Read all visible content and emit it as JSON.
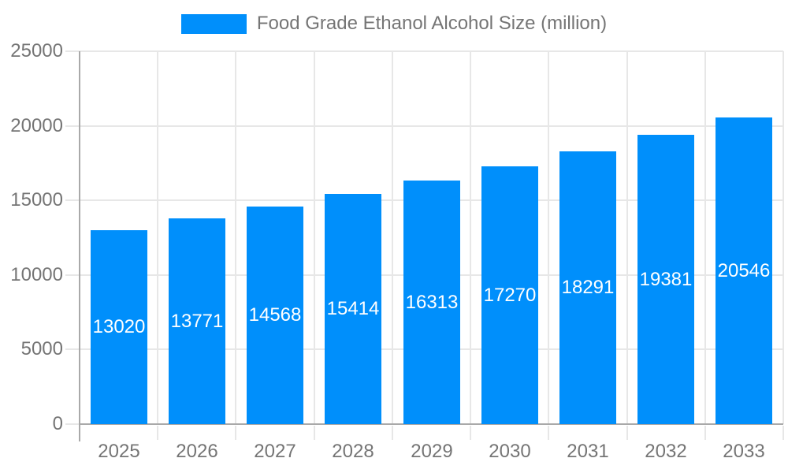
{
  "legend": {
    "label": "Food Grade Ethanol Alcohol Size (million)"
  },
  "chart_data": {
    "type": "bar",
    "title": "Food Grade Ethanol Alcohol Size (million)",
    "categories": [
      "2025",
      "2026",
      "2027",
      "2028",
      "2029",
      "2030",
      "2031",
      "2032",
      "2033"
    ],
    "series": [
      {
        "name": "Food Grade Ethanol Alcohol Size (million)",
        "values": [
          13020,
          13771,
          14568,
          15414,
          16313,
          17270,
          18291,
          19381,
          20546
        ]
      }
    ],
    "value_labels": [
      13020,
      13771,
      14568,
      15414,
      16313,
      17270,
      18291,
      19381,
      20546
    ],
    "xlabel": "",
    "ylabel": "",
    "ylim": [
      0,
      25000
    ],
    "yticks": [
      0,
      5000,
      10000,
      15000,
      20000,
      25000
    ],
    "grid": true,
    "legend_position": "top",
    "value_label_position": "inside-center",
    "colors": {
      "bar": "#008FFB",
      "value_label": "#FFFFFF",
      "axis_text": "#757575",
      "grid_line": "#E7E7E7",
      "axis_line": "#A9A9A9",
      "background": "#FFFFFF"
    }
  }
}
